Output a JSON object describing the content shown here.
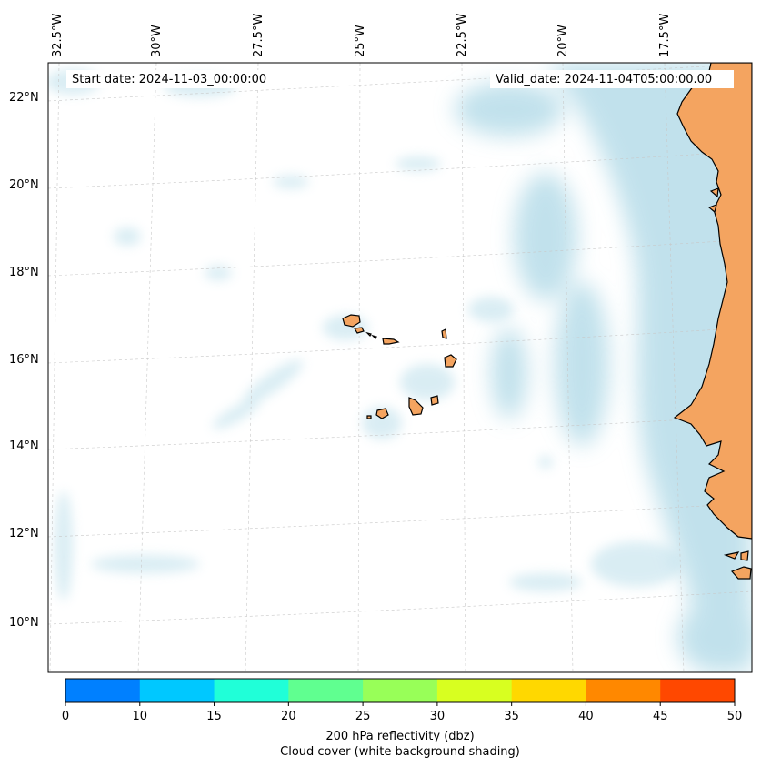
{
  "map": {
    "start_date": "Start date: 2024-11-03_00:00:00",
    "valid_date": "Valid_date: 2024-11-04T05:00:00.00",
    "lon_labels": [
      "32.5°W",
      "30°W",
      "27.5°W",
      "25°W",
      "22.5°W",
      "20°W",
      "17.5°W"
    ],
    "lat_labels": [
      "22°N",
      "20°N",
      "18°N",
      "16°N",
      "14°N",
      "12°N",
      "10°N"
    ],
    "land_color": "#f4a460",
    "cloud_color": "#add8e6"
  },
  "colorbar": {
    "ticks": [
      "0",
      "10",
      "15",
      "20",
      "25",
      "30",
      "35",
      "40",
      "45",
      "50"
    ],
    "colors": [
      "#0080ff",
      "#00c8ff",
      "#20ffd8",
      "#60ff90",
      "#98ff58",
      "#d8ff20",
      "#ffd800",
      "#ff8800",
      "#ff4800"
    ],
    "label_line1": "200 hPa reflectivity (dbz)",
    "label_line2": "Cloud cover (white background shading)"
  }
}
